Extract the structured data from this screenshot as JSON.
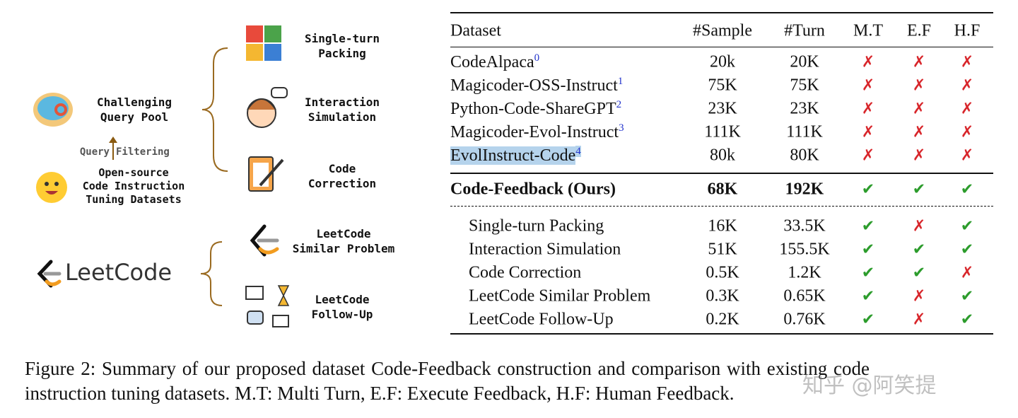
{
  "diagram": {
    "query_pool": [
      "Challenging",
      "Query Pool"
    ],
    "filter_left": "Query",
    "filter_right": "Filtering",
    "open_source": [
      "Open-source",
      "Code Instruction",
      "Tuning Datasets"
    ],
    "leetcode_logo": "LeetCode",
    "single_turn": [
      "Single-turn",
      "Packing"
    ],
    "interaction": [
      "Interaction",
      "Simulation"
    ],
    "correction": [
      "Code",
      "Correction"
    ],
    "similar": [
      "LeetCode",
      "Similar Problem"
    ],
    "follow_up": [
      "LeetCode",
      "Follow-Up"
    ]
  },
  "table": {
    "header": [
      "Dataset",
      "#Sample",
      "#Turn",
      "M.T",
      "E.F",
      "H.F"
    ],
    "rows": [
      {
        "name": "CodeAlpaca",
        "sup": "0",
        "sample": "20k",
        "turn": "20K",
        "mt": "✗",
        "ef": "✗",
        "hf": "✗"
      },
      {
        "name": "Magicoder-OSS-Instruct",
        "sup": "1",
        "sample": "75K",
        "turn": "75K",
        "mt": "✗",
        "ef": "✗",
        "hf": "✗"
      },
      {
        "name": "Python-Code-ShareGPT",
        "sup": "2",
        "sample": "23K",
        "turn": "23K",
        "mt": "✗",
        "ef": "✗",
        "hf": "✗"
      },
      {
        "name": "Magicoder-Evol-Instruct",
        "sup": "3",
        "sample": "111K",
        "turn": "111K",
        "mt": "✗",
        "ef": "✗",
        "hf": "✗"
      },
      {
        "name": "EvolInstruct-Code",
        "sup": "4",
        "sample": "80k",
        "turn": "80K",
        "mt": "✗",
        "ef": "✗",
        "hf": "✗",
        "highlighted": true
      }
    ],
    "ours": {
      "name": "Code-Feedback (Ours)",
      "sample": "68K",
      "turn": "192K",
      "mt": "✔",
      "ef": "✔",
      "hf": "✔"
    },
    "subsets": [
      {
        "name": "Single-turn Packing",
        "sample": "16K",
        "turn": "33.5K",
        "mt": "✔",
        "ef": "✗",
        "hf": "✔"
      },
      {
        "name": "Interaction Simulation",
        "sample": "51K",
        "turn": "155.5K",
        "mt": "✔",
        "ef": "✔",
        "hf": "✔"
      },
      {
        "name": "Code Correction",
        "sample": "0.5K",
        "turn": "1.2K",
        "mt": "✔",
        "ef": "✔",
        "hf": "✗"
      },
      {
        "name": "LeetCode Similar Problem",
        "sample": "0.3K",
        "turn": "0.65K",
        "mt": "✔",
        "ef": "✗",
        "hf": "✔"
      },
      {
        "name": "LeetCode Follow-Up",
        "sample": "0.2K",
        "turn": "0.76K",
        "mt": "✔",
        "ef": "✗",
        "hf": "✔"
      }
    ]
  },
  "caption": [
    "Figure 2: Summary of our proposed dataset Code-Feedback construction and comparison with existing code",
    "instruction tuning datasets. M.T: Multi Turn, E.F: Execute Feedback, H.F: Human Feedback."
  ],
  "watermark": "知乎 @阿笑提"
}
